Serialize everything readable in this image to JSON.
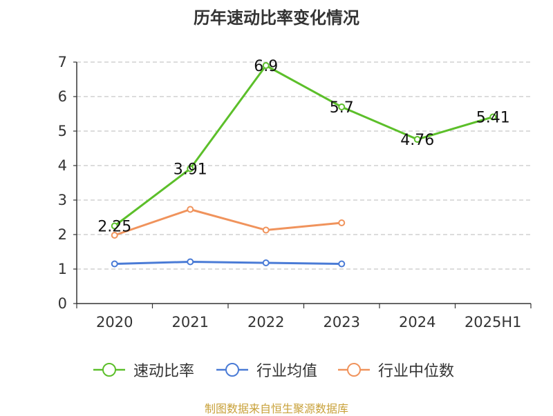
{
  "chart_data": {
    "type": "line",
    "title": "历年速动比率变化情况",
    "categories": [
      "2020",
      "2021",
      "2022",
      "2023",
      "2024",
      "2025H1"
    ],
    "y_ticks": [
      0,
      1,
      2,
      3,
      4,
      5,
      6,
      7
    ],
    "ylim": [
      0,
      7
    ],
    "grid": "horizontal dashed",
    "legend_position": "bottom",
    "series": [
      {
        "name": "速动比率",
        "color": "#5cbf2a",
        "values": [
          2.25,
          3.91,
          6.9,
          5.7,
          4.76,
          5.41
        ],
        "labels": [
          "2.25",
          "3.91",
          "6.9",
          "5.7",
          "4.76",
          "5.41"
        ]
      },
      {
        "name": "行业均值",
        "color": "#4a7bd6",
        "values": [
          1.15,
          1.21,
          1.18,
          1.15,
          null,
          null
        ]
      },
      {
        "name": "行业中位数",
        "color": "#f0935c",
        "values": [
          1.98,
          2.73,
          2.13,
          2.34,
          null,
          null
        ]
      }
    ],
    "source": "制图数据来自恒生聚源数据库"
  }
}
